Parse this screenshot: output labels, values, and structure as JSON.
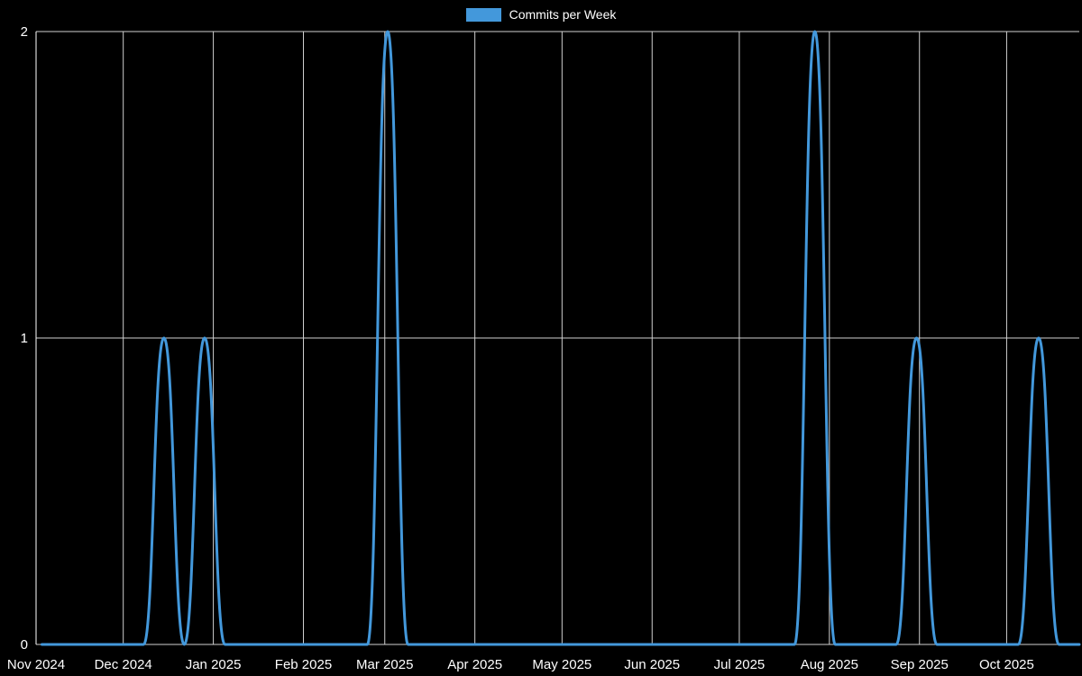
{
  "page": {
    "background": "#000000"
  },
  "legend": {
    "label": "Commits per Week",
    "swatch_color": "#4398db"
  },
  "chart_data": {
    "type": "line",
    "title": "Commits per Week",
    "legend_position": "top",
    "grid": true,
    "line_color": "#4398db",
    "grid_color": "#cfcfcf",
    "axis_text_color": "#ffffff",
    "ylim": [
      0,
      2
    ],
    "yticks": [
      0,
      1,
      2
    ],
    "x_range": [
      "2024-11-01",
      "2025-10-26"
    ],
    "x_ticks": [
      {
        "label": "Nov 2024",
        "date": "2024-11-01"
      },
      {
        "label": "Dec 2024",
        "date": "2024-12-01"
      },
      {
        "label": "Jan 2025",
        "date": "2025-01-01"
      },
      {
        "label": "Feb 2025",
        "date": "2025-02-01"
      },
      {
        "label": "Mar 2025",
        "date": "2025-03-01"
      },
      {
        "label": "Apr 2025",
        "date": "2025-04-01"
      },
      {
        "label": "May 2025",
        "date": "2025-05-01"
      },
      {
        "label": "Jun 2025",
        "date": "2025-06-01"
      },
      {
        "label": "Jul 2025",
        "date": "2025-07-01"
      },
      {
        "label": "Aug 2025",
        "date": "2025-08-01"
      },
      {
        "label": "Sep 2025",
        "date": "2025-09-01"
      },
      {
        "label": "Oct 2025",
        "date": "2025-10-01"
      }
    ],
    "series": [
      {
        "name": "Commits per Week",
        "color": "#4398db",
        "x": [
          "2024-11-03",
          "2024-11-10",
          "2024-11-17",
          "2024-11-24",
          "2024-12-01",
          "2024-12-08",
          "2024-12-15",
          "2024-12-22",
          "2024-12-29",
          "2025-01-05",
          "2025-01-12",
          "2025-01-19",
          "2025-01-26",
          "2025-02-02",
          "2025-02-09",
          "2025-02-16",
          "2025-02-23",
          "2025-03-02",
          "2025-03-09",
          "2025-03-16",
          "2025-03-23",
          "2025-03-30",
          "2025-04-06",
          "2025-04-13",
          "2025-04-20",
          "2025-04-27",
          "2025-05-04",
          "2025-05-11",
          "2025-05-18",
          "2025-05-25",
          "2025-06-01",
          "2025-06-08",
          "2025-06-15",
          "2025-06-22",
          "2025-06-29",
          "2025-07-06",
          "2025-07-13",
          "2025-07-20",
          "2025-07-27",
          "2025-08-03",
          "2025-08-10",
          "2025-08-17",
          "2025-08-24",
          "2025-08-31",
          "2025-09-07",
          "2025-09-14",
          "2025-09-21",
          "2025-09-28",
          "2025-10-05",
          "2025-10-12",
          "2025-10-19",
          "2025-10-26"
        ],
        "values": [
          0,
          0,
          0,
          0,
          0,
          0,
          1,
          0,
          1,
          0,
          0,
          0,
          0,
          0,
          0,
          0,
          0,
          2,
          0,
          0,
          0,
          0,
          0,
          0,
          0,
          0,
          0,
          0,
          0,
          0,
          0,
          0,
          0,
          0,
          0,
          0,
          0,
          0,
          2,
          0,
          0,
          0,
          0,
          1,
          0,
          0,
          0,
          0,
          0,
          1,
          0,
          0
        ]
      }
    ]
  }
}
